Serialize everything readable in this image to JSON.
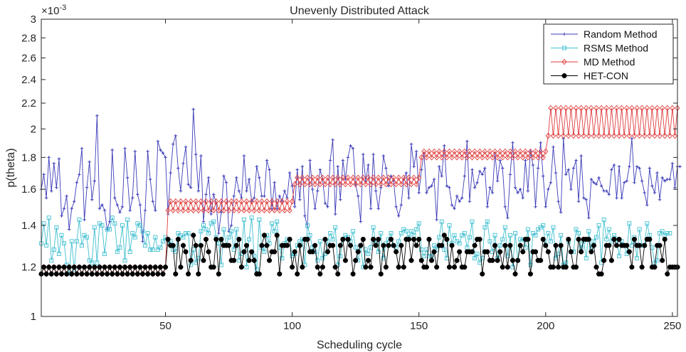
{
  "chart_data": {
    "type": "line",
    "title": "Unevenly Distributed Attack",
    "xlabel": "Scheduling cycle",
    "ylabel": "p(theta)",
    "y_exponent_label": "×10",
    "y_exponent_power": "-3",
    "xlim": [
      1,
      252
    ],
    "ylim": [
      1.0,
      3.0
    ],
    "y_scale": "log",
    "x_ticks": [
      50,
      100,
      150,
      200,
      250
    ],
    "x_tick_labels": [
      "50",
      "100",
      "150",
      "200",
      "250"
    ],
    "y_ticks": [
      1.0,
      1.2,
      1.4,
      1.6,
      1.8,
      2.0,
      2.2,
      2.4,
      2.6,
      2.8,
      3.0
    ],
    "y_tick_labels": [
      "1",
      "1.2",
      "1.4",
      "1.6",
      "1.8",
      "2",
      "2.2",
      "2.4",
      "2.6",
      "2.8",
      "3"
    ],
    "legend_position": "top-right",
    "series": [
      {
        "name": "Random Method",
        "color": "#3b3bb8",
        "marker": "plus",
        "values": [
          1.6,
          1.69,
          1.55,
          1.8,
          1.59,
          1.76,
          1.61,
          1.79,
          1.45,
          1.49,
          1.56,
          1.38,
          1.49,
          1.53,
          1.64,
          1.69,
          1.86,
          1.43,
          1.61,
          1.77,
          1.54,
          1.65,
          2.1,
          1.49,
          1.51,
          1.48,
          1.38,
          1.42,
          1.85,
          1.55,
          1.51,
          1.47,
          1.5,
          1.86,
          1.67,
          1.48,
          1.55,
          1.84,
          1.57,
          1.51,
          1.32,
          1.48,
          1.84,
          1.66,
          1.53,
          1.48,
          1.91,
          1.85,
          1.83,
          1.8,
          1.46,
          1.7,
          1.89,
          1.95,
          1.73,
          1.59,
          1.76,
          1.87,
          1.63,
          1.61,
          2.15,
          1.82,
          1.59,
          1.81,
          1.42,
          1.57,
          1.67,
          1.46,
          1.57,
          1.52,
          1.36,
          1.47,
          1.68,
          1.64,
          1.37,
          1.4,
          1.56,
          1.67,
          1.59,
          1.55,
          1.81,
          1.59,
          1.66,
          1.53,
          1.55,
          1.74,
          1.67,
          1.56,
          1.56,
          1.78,
          1.72,
          1.49,
          1.64,
          1.49,
          1.56,
          1.53,
          1.59,
          1.55,
          1.7,
          1.62,
          1.5,
          1.72,
          1.54,
          1.74,
          1.45,
          1.39,
          1.78,
          1.6,
          1.49,
          1.59,
          1.72,
          1.66,
          1.52,
          1.5,
          1.78,
          1.92,
          1.46,
          1.74,
          1.54,
          1.78,
          1.66,
          1.8,
          1.88,
          1.86,
          1.63,
          1.56,
          1.42,
          1.82,
          1.65,
          1.75,
          1.49,
          1.82,
          1.59,
          1.49,
          1.61,
          1.81,
          1.73,
          1.62,
          1.68,
          1.65,
          1.5,
          1.45,
          1.51,
          1.66,
          1.7,
          1.55,
          1.89,
          1.74,
          1.84,
          1.58,
          1.72,
          1.83,
          1.58,
          1.61,
          1.62,
          1.66,
          1.43,
          1.74,
          1.68,
          1.88,
          1.62,
          1.61,
          1.51,
          1.49,
          1.56,
          1.53,
          1.55,
          1.68,
          1.91,
          1.53,
          1.72,
          1.61,
          1.64,
          1.71,
          1.69,
          1.73,
          1.5,
          1.61,
          1.58,
          1.83,
          1.65,
          1.78,
          1.73,
          1.5,
          1.44,
          1.69,
          1.9,
          1.61,
          1.58,
          1.6,
          1.55,
          1.78,
          1.59,
          1.84,
          1.75,
          1.5,
          1.73,
          1.9,
          1.68,
          1.5,
          1.6,
          1.64,
          1.87,
          1.7,
          1.53,
          1.47,
          1.93,
          1.69,
          1.72,
          1.6,
          1.73,
          1.78,
          1.53,
          1.81,
          1.55,
          1.54,
          1.44,
          1.66,
          1.64,
          1.63,
          1.67,
          1.62,
          1.59,
          1.59,
          1.57,
          1.72,
          1.75,
          1.55,
          1.74,
          1.55,
          1.64,
          1.65,
          1.74,
          1.93,
          1.64,
          1.74,
          1.73,
          1.65,
          1.58,
          1.51,
          1.73,
          1.62,
          1.58,
          1.7,
          1.54,
          1.67,
          1.65,
          1.66,
          1.66,
          1.76,
          1.61,
          1.74,
          1.74
        ]
      },
      {
        "name": "RSMS Method",
        "color": "#3fbfd0",
        "marker": "square",
        "values": [
          1.31,
          1.41,
          1.3,
          1.44,
          1.23,
          1.28,
          1.39,
          1.26,
          1.35,
          1.31,
          1.21,
          1.17,
          1.32,
          1.19,
          1.32,
          1.43,
          1.3,
          1.35,
          1.34,
          1.23,
          1.22,
          1.39,
          1.22,
          1.41,
          1.4,
          1.26,
          1.38,
          1.38,
          1.44,
          1.41,
          1.27,
          1.29,
          1.4,
          1.23,
          1.43,
          1.27,
          1.36,
          1.34,
          1.41,
          1.4,
          1.37,
          1.3,
          1.36,
          1.28,
          1.28,
          1.34,
          1.28,
          1.29,
          1.32,
          1.34,
          1.31,
          1.32,
          1.28,
          1.27,
          1.36,
          1.35,
          1.34,
          1.36,
          1.36,
          1.21,
          1.28,
          1.22,
          1.24,
          1.37,
          1.4,
          1.38,
          1.36,
          1.41,
          1.42,
          1.34,
          1.31,
          1.21,
          1.38,
          1.3,
          1.34,
          1.37,
          1.28,
          1.38,
          1.23,
          1.26,
          1.43,
          1.2,
          1.33,
          1.44,
          1.25,
          1.19,
          1.43,
          1.29,
          1.27,
          1.35,
          1.31,
          1.41,
          1.37,
          1.42,
          1.29,
          1.24,
          1.31,
          1.33,
          1.33,
          1.25,
          1.26,
          1.3,
          1.32,
          1.33,
          1.21,
          1.4,
          1.35,
          1.29,
          1.27,
          1.23,
          1.32,
          1.24,
          1.26,
          1.32,
          1.36,
          1.33,
          1.39,
          1.21,
          1.25,
          1.33,
          1.35,
          1.34,
          1.32,
          1.37,
          1.29,
          1.23,
          1.3,
          1.2,
          1.28,
          1.26,
          1.29,
          1.39,
          1.31,
          1.27,
          1.36,
          1.24,
          1.31,
          1.33,
          1.36,
          1.3,
          1.29,
          1.32,
          1.36,
          1.38,
          1.37,
          1.34,
          1.37,
          1.35,
          1.38,
          1.41,
          1.28,
          1.25,
          1.28,
          1.25,
          1.25,
          1.3,
          1.28,
          1.34,
          1.42,
          1.28,
          1.24,
          1.4,
          1.31,
          1.35,
          1.32,
          1.31,
          1.35,
          1.36,
          1.29,
          1.34,
          1.42,
          1.24,
          1.26,
          1.22,
          1.24,
          1.39,
          1.42,
          1.32,
          1.27,
          1.35,
          1.24,
          1.3,
          1.33,
          1.39,
          1.25,
          1.35,
          1.2,
          1.36,
          1.23,
          1.33,
          1.33,
          1.29,
          1.38,
          1.21,
          1.36,
          1.35,
          1.38,
          1.39,
          1.4,
          1.3,
          1.36,
          1.32,
          1.39,
          1.24,
          1.26,
          1.35,
          1.21,
          1.22,
          1.32,
          1.27,
          1.27,
          1.38,
          1.36,
          1.29,
          1.32,
          1.24,
          1.37,
          1.29,
          1.32,
          1.34,
          1.4,
          1.22,
          1.43,
          1.33,
          1.38,
          1.32,
          1.35,
          1.33,
          1.25,
          1.32,
          1.3,
          1.26,
          1.41,
          1.3,
          1.34,
          1.24,
          1.38,
          1.3,
          1.3,
          1.41,
          1.35,
          1.29,
          1.22,
          1.23,
          1.36,
          1.37,
          1.35,
          1.36,
          1.36
        ]
      },
      {
        "name": "MD Method",
        "color": "#e03a3a",
        "marker": "diamond",
        "values": [
          1.17,
          1.2,
          1.17,
          1.2,
          1.17,
          1.2,
          1.17,
          1.2,
          1.17,
          1.2,
          1.17,
          1.2,
          1.17,
          1.2,
          1.17,
          1.2,
          1.17,
          1.2,
          1.17,
          1.2,
          1.17,
          1.2,
          1.17,
          1.2,
          1.17,
          1.2,
          1.17,
          1.2,
          1.17,
          1.2,
          1.17,
          1.2,
          1.17,
          1.2,
          1.17,
          1.2,
          1.17,
          1.2,
          1.17,
          1.2,
          1.17,
          1.2,
          1.17,
          1.2,
          1.17,
          1.2,
          1.17,
          1.2,
          1.17,
          1.2,
          1.48,
          1.53,
          1.48,
          1.53,
          1.48,
          1.53,
          1.48,
          1.53,
          1.48,
          1.53,
          1.48,
          1.53,
          1.48,
          1.53,
          1.48,
          1.53,
          1.48,
          1.53,
          1.48,
          1.53,
          1.48,
          1.53,
          1.48,
          1.53,
          1.48,
          1.53,
          1.48,
          1.53,
          1.48,
          1.53,
          1.48,
          1.53,
          1.48,
          1.53,
          1.48,
          1.53,
          1.48,
          1.53,
          1.48,
          1.53,
          1.48,
          1.53,
          1.48,
          1.53,
          1.48,
          1.53,
          1.48,
          1.53,
          1.48,
          1.53,
          1.63,
          1.67,
          1.63,
          1.67,
          1.63,
          1.67,
          1.63,
          1.67,
          1.63,
          1.67,
          1.63,
          1.67,
          1.63,
          1.67,
          1.63,
          1.67,
          1.63,
          1.67,
          1.63,
          1.67,
          1.63,
          1.67,
          1.63,
          1.67,
          1.63,
          1.67,
          1.63,
          1.67,
          1.63,
          1.67,
          1.63,
          1.67,
          1.63,
          1.67,
          1.63,
          1.67,
          1.63,
          1.67,
          1.63,
          1.67,
          1.63,
          1.67,
          1.63,
          1.67,
          1.63,
          1.67,
          1.63,
          1.67,
          1.63,
          1.67,
          1.8,
          1.84,
          1.8,
          1.84,
          1.8,
          1.84,
          1.8,
          1.84,
          1.8,
          1.84,
          1.8,
          1.84,
          1.8,
          1.84,
          1.8,
          1.84,
          1.8,
          1.84,
          1.8,
          1.84,
          1.8,
          1.84,
          1.8,
          1.84,
          1.8,
          1.84,
          1.8,
          1.84,
          1.8,
          1.84,
          1.8,
          1.84,
          1.8,
          1.84,
          1.8,
          1.84,
          1.8,
          1.84,
          1.8,
          1.84,
          1.8,
          1.84,
          1.8,
          1.84,
          1.8,
          1.84,
          1.8,
          1.84,
          1.8,
          1.84,
          1.95,
          2.16,
          1.95,
          2.16,
          1.95,
          2.16,
          1.95,
          2.16,
          1.95,
          2.16,
          1.95,
          2.16,
          1.95,
          2.16,
          1.95,
          2.16,
          1.95,
          2.16,
          1.95,
          2.16,
          1.95,
          2.16,
          1.95,
          2.16,
          1.95,
          2.16,
          1.95,
          2.16,
          1.95,
          2.16,
          1.95,
          2.16,
          1.95,
          2.16,
          1.95,
          2.16,
          1.95,
          2.16,
          1.95,
          2.16,
          1.95,
          2.16,
          1.95,
          2.16,
          1.95,
          2.16,
          1.95,
          2.16,
          1.95,
          2.16,
          1.95,
          2.16
        ]
      },
      {
        "name": "HET-CON",
        "color": "#000000",
        "marker": "dot",
        "values": [
          1.17,
          1.2,
          1.17,
          1.2,
          1.17,
          1.2,
          1.17,
          1.2,
          1.17,
          1.2,
          1.17,
          1.2,
          1.17,
          1.2,
          1.17,
          1.2,
          1.17,
          1.2,
          1.17,
          1.2,
          1.17,
          1.2,
          1.17,
          1.2,
          1.17,
          1.2,
          1.17,
          1.2,
          1.17,
          1.2,
          1.17,
          1.2,
          1.17,
          1.2,
          1.17,
          1.2,
          1.17,
          1.2,
          1.17,
          1.2,
          1.17,
          1.2,
          1.17,
          1.2,
          1.17,
          1.2,
          1.17,
          1.2,
          1.17,
          1.2,
          1.33,
          1.3,
          1.3,
          1.17,
          1.33,
          1.2,
          1.3,
          1.27,
          1.17,
          1.23,
          1.35,
          1.3,
          1.17,
          1.3,
          1.23,
          1.33,
          1.27,
          1.2,
          1.2,
          1.33,
          1.17,
          1.33,
          1.3,
          1.3,
          1.3,
          1.23,
          1.23,
          1.3,
          1.33,
          1.2,
          1.27,
          1.3,
          1.23,
          1.27,
          1.23,
          1.17,
          1.17,
          1.3,
          1.35,
          1.3,
          1.23,
          1.27,
          1.27,
          1.35,
          1.17,
          1.3,
          1.3,
          1.3,
          1.33,
          1.2,
          1.27,
          1.17,
          1.3,
          1.2,
          1.33,
          1.33,
          1.27,
          1.27,
          1.3,
          1.2,
          1.17,
          1.2,
          1.33,
          1.27,
          1.3,
          1.3,
          1.2,
          1.17,
          1.3,
          1.33,
          1.23,
          1.33,
          1.3,
          1.17,
          1.23,
          1.27,
          1.3,
          1.33,
          1.2,
          1.23,
          1.2,
          1.33,
          1.3,
          1.33,
          1.17,
          1.3,
          1.2,
          1.3,
          1.33,
          1.3,
          1.27,
          1.2,
          1.3,
          1.2,
          1.33,
          1.33,
          1.23,
          1.33,
          1.3,
          1.33,
          1.23,
          1.2,
          1.2,
          1.33,
          1.23,
          1.27,
          1.2,
          1.3,
          1.3,
          1.35,
          1.33,
          1.2,
          1.3,
          1.2,
          1.23,
          1.27,
          1.2,
          1.2,
          1.27,
          1.27,
          1.27,
          1.3,
          1.33,
          1.33,
          1.17,
          1.27,
          1.27,
          1.23,
          1.23,
          1.3,
          1.23,
          1.27,
          1.2,
          1.3,
          1.2,
          1.3,
          1.23,
          1.17,
          1.23,
          1.3,
          1.27,
          1.33,
          1.33,
          1.17,
          1.27,
          1.27,
          1.23,
          1.23,
          1.33,
          1.3,
          1.27,
          1.2,
          1.2,
          1.3,
          1.2,
          1.3,
          1.2,
          1.2,
          1.33,
          1.27,
          1.2,
          1.2,
          1.33,
          1.27,
          1.33,
          1.33,
          1.33,
          1.27,
          1.3,
          1.2,
          1.17,
          1.17,
          1.23,
          1.3,
          1.3,
          1.23,
          1.33,
          1.3,
          1.33,
          1.3,
          1.3,
          1.3,
          1.27,
          1.2,
          1.33,
          1.3,
          1.3,
          1.2,
          1.3,
          1.33,
          1.33,
          1.2,
          1.2,
          1.3,
          1.3,
          1.23,
          1.33,
          1.17,
          1.2,
          1.2,
          1.2,
          1.2
        ]
      }
    ]
  }
}
